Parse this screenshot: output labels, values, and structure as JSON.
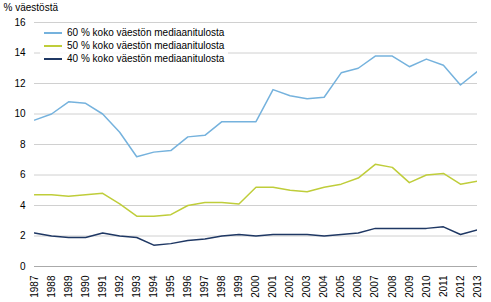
{
  "chart_data": {
    "type": "line",
    "ylabel": "% väestöstä",
    "x": [
      1987,
      1988,
      1989,
      1990,
      1991,
      1992,
      1993,
      1994,
      1995,
      1996,
      1997,
      1998,
      1999,
      2000,
      2001,
      2002,
      2003,
      2004,
      2005,
      2006,
      2007,
      2008,
      2009,
      2010,
      2011,
      2012,
      2013
    ],
    "series": [
      {
        "name": "60 % koko väestön mediaanitulosta",
        "color": "#75b2dd",
        "values": [
          9.6,
          10.0,
          10.8,
          10.7,
          10.0,
          8.8,
          7.2,
          7.5,
          7.6,
          8.5,
          8.6,
          9.5,
          9.5,
          9.5,
          11.6,
          11.2,
          11.0,
          11.1,
          12.7,
          13.0,
          13.8,
          13.8,
          13.1,
          13.6,
          13.2,
          11.9,
          12.8
        ]
      },
      {
        "name": "50 % koko väestön mediaanitulosta",
        "color": "#bfcd3a",
        "values": [
          4.7,
          4.7,
          4.6,
          4.7,
          4.8,
          4.1,
          3.3,
          3.3,
          3.4,
          4.0,
          4.2,
          4.2,
          4.1,
          5.2,
          5.2,
          5.0,
          4.9,
          5.2,
          5.4,
          5.8,
          6.7,
          6.5,
          5.5,
          6.0,
          6.1,
          5.4,
          5.6
        ]
      },
      {
        "name": "40 % koko väestön mediaanitulosta",
        "color": "#1f3864",
        "values": [
          2.2,
          2.0,
          1.9,
          1.9,
          2.2,
          2.0,
          1.9,
          1.4,
          1.5,
          1.7,
          1.8,
          2.0,
          2.1,
          2.0,
          2.1,
          2.1,
          2.1,
          2.0,
          2.1,
          2.2,
          2.5,
          2.5,
          2.5,
          2.5,
          2.6,
          2.1,
          2.4
        ]
      }
    ],
    "xlim": [
      1987,
      2013
    ],
    "xticks": [
      1987,
      1988,
      1989,
      1990,
      1991,
      1992,
      1993,
      1994,
      1995,
      1996,
      1997,
      1998,
      1999,
      2000,
      2001,
      2002,
      2003,
      2004,
      2005,
      2006,
      2007,
      2008,
      2009,
      2010,
      2011,
      2012,
      2013
    ],
    "ylim": [
      0,
      16
    ],
    "yticks": [
      0,
      2,
      4,
      6,
      8,
      10,
      12,
      14,
      16
    ],
    "grid": true,
    "legend": "upper left"
  }
}
